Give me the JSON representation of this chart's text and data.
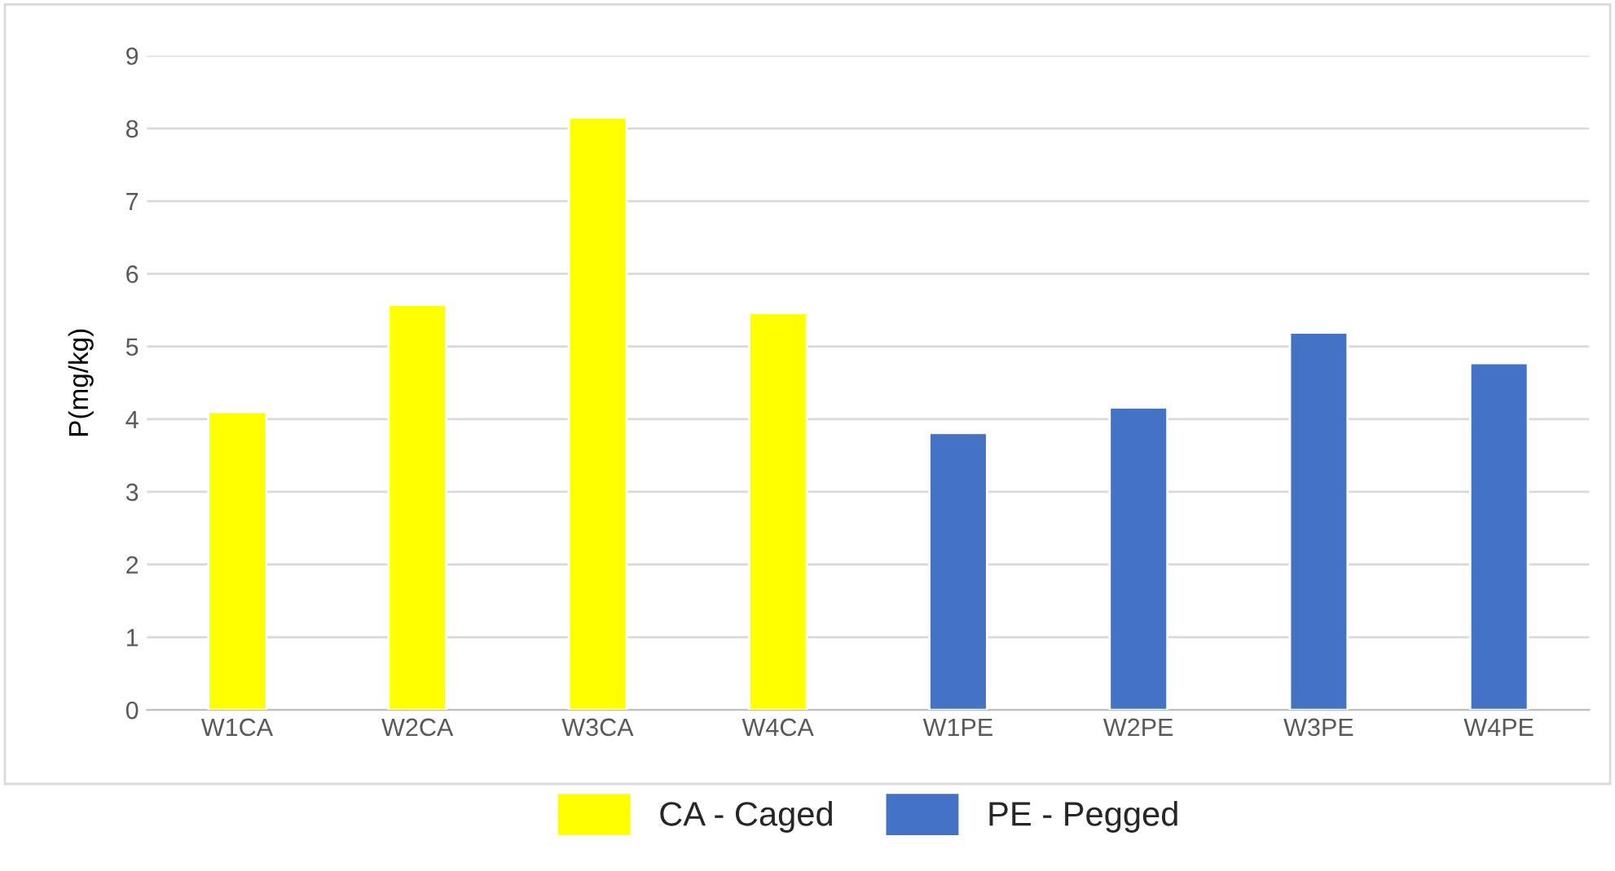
{
  "chart_data": {
    "type": "bar",
    "ylabel": "P(mg/kg)",
    "categories": [
      "W1CA",
      "W2CA",
      "W3CA",
      "W4CA",
      "W1PE",
      "W2PE",
      "W3PE",
      "W4PE"
    ],
    "series": [
      {
        "name": "CA - Caged",
        "color": "#ffff00",
        "values": [
          4.1,
          5.57,
          8.15,
          5.46,
          null,
          null,
          null,
          null
        ]
      },
      {
        "name": "PE - Pegged",
        "color": "#4472c4",
        "values": [
          null,
          null,
          null,
          null,
          3.81,
          4.16,
          5.19,
          4.77
        ]
      }
    ],
    "ylim": [
      0,
      9
    ],
    "yticks": [
      0,
      1,
      2,
      3,
      4,
      5,
      6,
      7,
      8,
      9
    ],
    "grid": "y",
    "legend": "bottom"
  }
}
